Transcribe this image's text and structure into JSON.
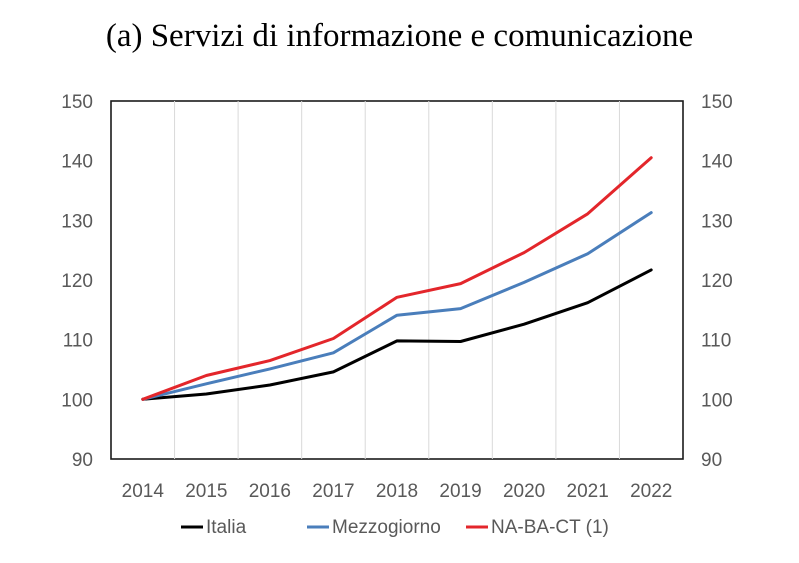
{
  "chart_data": {
    "type": "line",
    "title": "(a) Servizi di informazione e comunicazione",
    "x": [
      "2014",
      "2015",
      "2016",
      "2017",
      "2018",
      "2019",
      "2020",
      "2021",
      "2022"
    ],
    "ylim": [
      90,
      150
    ],
    "yticks": [
      "90",
      "100",
      "110",
      "120",
      "130",
      "140",
      "150"
    ],
    "grid": "vertical",
    "legend_position": "bottom",
    "series": [
      {
        "name": "Italia",
        "color": "#000000",
        "values": [
          100,
          100.9,
          102.4,
          104.6,
          109.8,
          109.7,
          112.6,
          116.2,
          121.7
        ]
      },
      {
        "name": "Mezzogiorno",
        "color": "#4a7ebb",
        "values": [
          100,
          102.6,
          105.1,
          107.8,
          114.1,
          115.2,
          119.6,
          124.4,
          131.3
        ]
      },
      {
        "name": "NA-BA-CT (1)",
        "color": "#e3262b",
        "values": [
          100,
          104,
          106.5,
          110.2,
          117.1,
          119.4,
          124.6,
          131.1,
          140.5
        ]
      }
    ]
  }
}
